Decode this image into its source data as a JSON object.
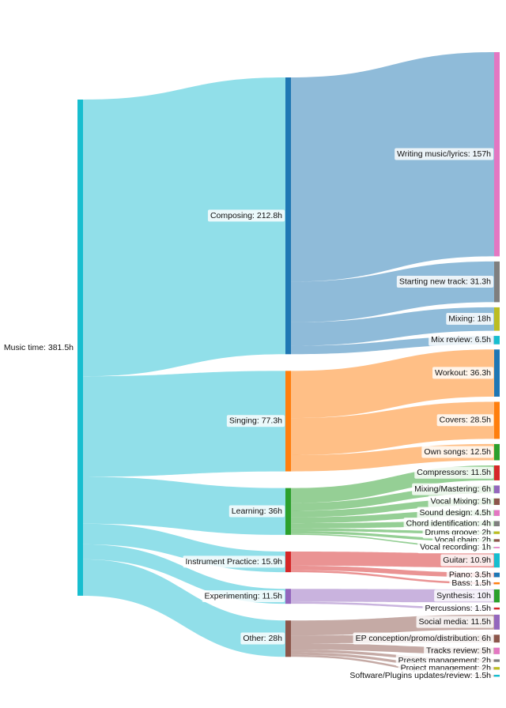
{
  "chart_data": {
    "type": "sankey",
    "unit": "h",
    "root": {
      "label": "Music time",
      "value": 381.5,
      "color": "#17becf"
    },
    "groups": [
      {
        "label": "Composing",
        "value": 212.8,
        "color": "#1f77b4",
        "link_color": "#8bdde8",
        "children": [
          {
            "label": "Writing music/lyrics",
            "value": 157,
            "color": "#e377c2"
          },
          {
            "label": "Starting new track",
            "value": 31.3,
            "color": "#7f7f7f"
          },
          {
            "label": "Mixing",
            "value": 18,
            "color": "#bcbd22"
          },
          {
            "label": "Mix review",
            "value": 6.5,
            "color": "#17becf"
          }
        ]
      },
      {
        "label": "Singing",
        "value": 77.3,
        "color": "#ff7f0e",
        "link_color": "#8bdde8",
        "children": [
          {
            "label": "Workout",
            "value": 36.3,
            "color": "#1f77b4"
          },
          {
            "label": "Covers",
            "value": 28.5,
            "color": "#ff7f0e"
          },
          {
            "label": "Own songs",
            "value": 12.5,
            "color": "#2ca02c"
          }
        ]
      },
      {
        "label": "Learning",
        "value": 36,
        "color": "#2ca02c",
        "link_color": "#8bdde8",
        "children": [
          {
            "label": "Compressors",
            "value": 11.5,
            "color": "#d62728"
          },
          {
            "label": "Mixing/Mastering",
            "value": 6,
            "color": "#9467bd"
          },
          {
            "label": "Vocal Mixing",
            "value": 5,
            "color": "#8c564b"
          },
          {
            "label": "Sound design",
            "value": 4.5,
            "color": "#e377c2"
          },
          {
            "label": "Chord identification",
            "value": 4,
            "color": "#7f7f7f"
          },
          {
            "label": "Drums groove",
            "value": 2,
            "color": "#bcbd22"
          },
          {
            "label": "Vocal chain",
            "value": 2,
            "color": "#8c564b"
          },
          {
            "label": "Vocal recording",
            "value": 1,
            "color": "#e377c2"
          }
        ]
      },
      {
        "label": "Instrument Practice",
        "value": 15.9,
        "color": "#d62728",
        "link_color": "#8bdde8",
        "children": [
          {
            "label": "Guitar",
            "value": 10.9,
            "color": "#17becf"
          },
          {
            "label": "Piano",
            "value": 3.5,
            "color": "#1f77b4"
          },
          {
            "label": "Bass",
            "value": 1.5,
            "color": "#ff7f0e"
          }
        ]
      },
      {
        "label": "Experimenting",
        "value": 11.5,
        "color": "#9467bd",
        "link_color": "#8bdde8",
        "children": [
          {
            "label": "Synthesis",
            "value": 10,
            "color": "#2ca02c"
          },
          {
            "label": "Percussions",
            "value": 1.5,
            "color": "#d62728"
          }
        ]
      },
      {
        "label": "Other",
        "value": 28,
        "color": "#8c564b",
        "link_color": "#8bdde8",
        "children": [
          {
            "label": "Social media",
            "value": 11.5,
            "color": "#9467bd"
          },
          {
            "label": "EP conception/promo/distribution",
            "value": 6,
            "color": "#8c564b"
          },
          {
            "label": "Tracks review",
            "value": 5,
            "color": "#e377c2"
          },
          {
            "label": "Presets management",
            "value": 2,
            "color": "#7f7f7f"
          },
          {
            "label": "Project management",
            "value": 2,
            "color": "#bcbd22"
          },
          {
            "label": "Software/Plugins updates/review",
            "value": 1.5,
            "color": "#17becf"
          }
        ]
      }
    ]
  }
}
